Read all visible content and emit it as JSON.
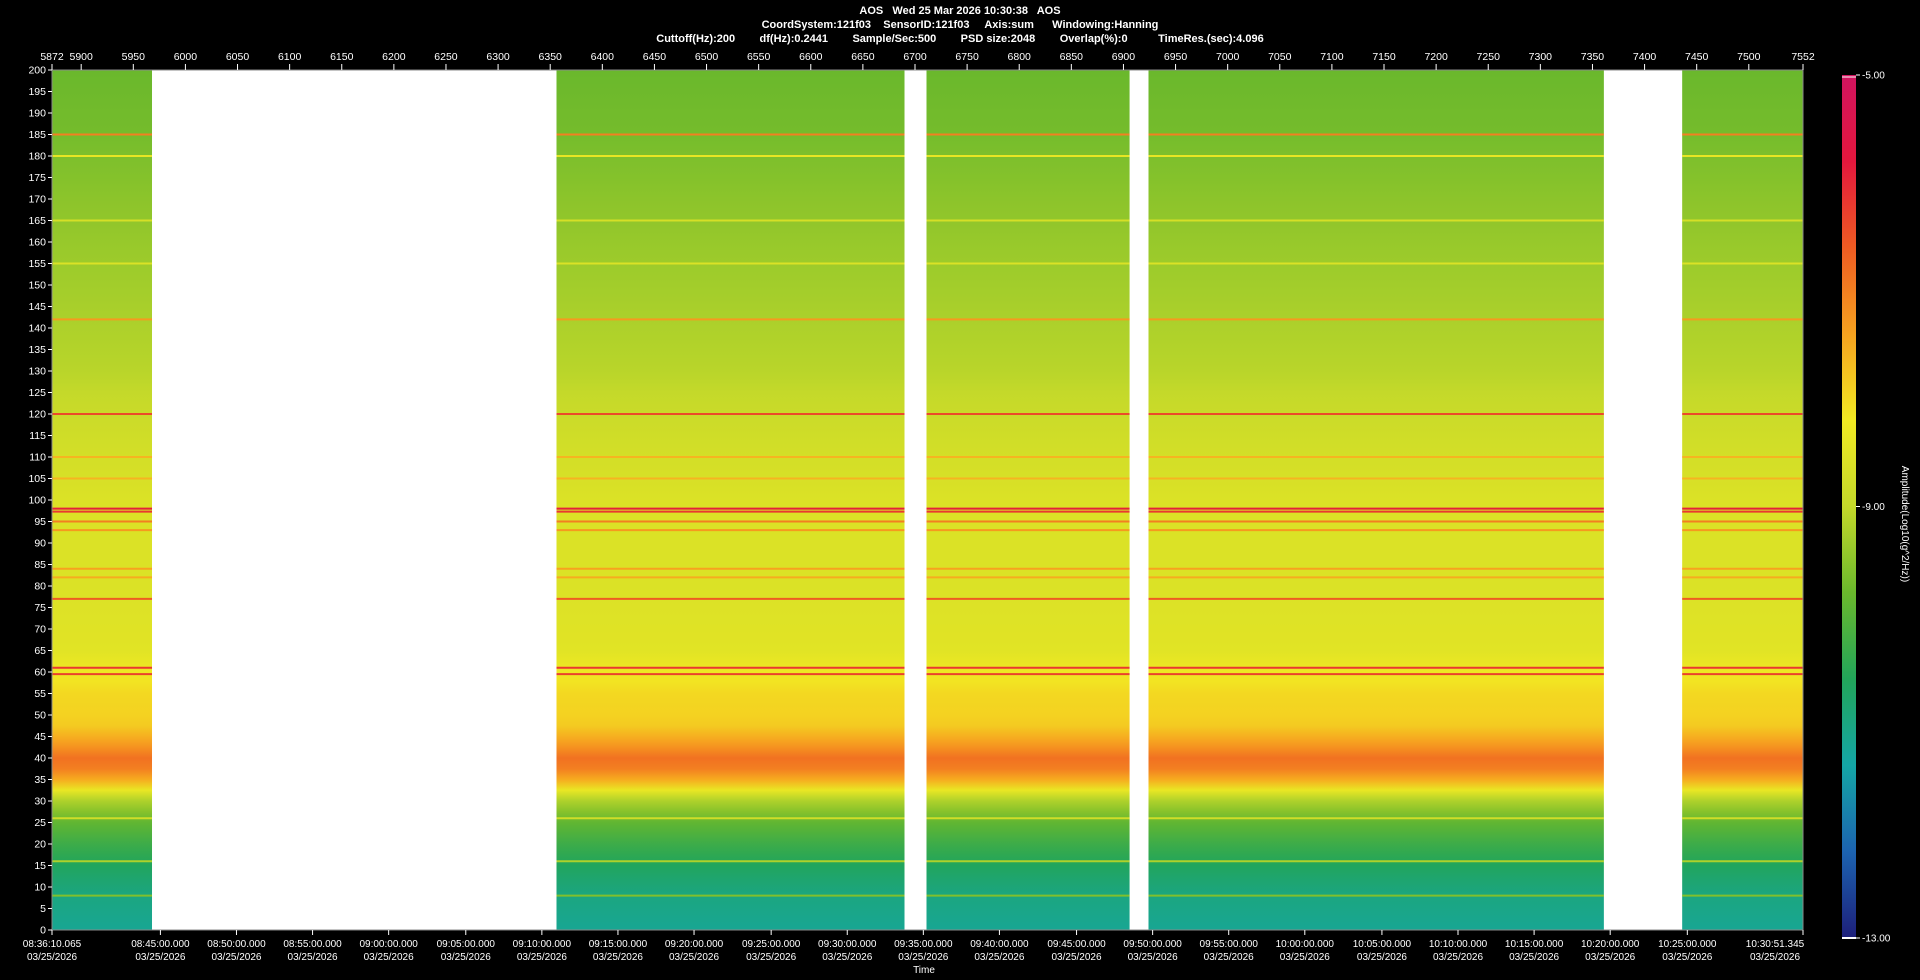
{
  "header": {
    "line1": "AOS   Wed 25 Mar 2026 10:30:38   AOS",
    "line2": "CoordSystem:121f03    SensorID:121f03     Axis:sum      Windowing:Hanning",
    "line3": "Cuttoff(Hz):200        df(Hz):0.2441        Sample/Sec:500        PSD size:2048        Overlap(%):0          TimeRes.(sec):4.096"
  },
  "chart_data": {
    "type": "heatmap",
    "title": "AOS   Wed 25 Mar 2026 10:30:38   AOS",
    "top_axis": {
      "range": [
        5872,
        7552
      ],
      "ticks": [
        5872,
        5900,
        5950,
        6000,
        6050,
        6100,
        6150,
        6200,
        6250,
        6300,
        6350,
        6400,
        6450,
        6500,
        6550,
        6600,
        6650,
        6700,
        6750,
        6800,
        6850,
        6900,
        6950,
        7000,
        7050,
        7100,
        7150,
        7200,
        7250,
        7300,
        7350,
        7400,
        7450,
        7500,
        7552
      ]
    },
    "y_axis": {
      "range": [
        0,
        200
      ],
      "ticks": [
        0,
        5,
        10,
        15,
        20,
        25,
        30,
        35,
        40,
        45,
        50,
        55,
        60,
        65,
        70,
        75,
        80,
        85,
        90,
        95,
        100,
        105,
        110,
        115,
        120,
        125,
        130,
        135,
        140,
        145,
        150,
        155,
        160,
        165,
        170,
        175,
        180,
        185,
        190,
        195,
        200
      ]
    },
    "x_axis": {
      "label": "Time",
      "date": "03/25/2026",
      "ticks": [
        {
          "index": 5872,
          "time": "08:36:10.065"
        },
        {
          "index": 5976,
          "time": "08:45:00.000"
        },
        {
          "index": 6049,
          "time": "08:50:00.000"
        },
        {
          "index": 6122,
          "time": "08:55:00.000"
        },
        {
          "index": 6195,
          "time": "09:00:00.000"
        },
        {
          "index": 6269,
          "time": "09:05:00.000"
        },
        {
          "index": 6342,
          "time": "09:10:00.000"
        },
        {
          "index": 6415,
          "time": "09:15:00.000"
        },
        {
          "index": 6488,
          "time": "09:20:00.000"
        },
        {
          "index": 6562,
          "time": "09:25:00.000"
        },
        {
          "index": 6635,
          "time": "09:30:00.000"
        },
        {
          "index": 6708,
          "time": "09:35:00.000"
        },
        {
          "index": 6781,
          "time": "09:40:00.000"
        },
        {
          "index": 6855,
          "time": "09:45:00.000"
        },
        {
          "index": 6928,
          "time": "09:50:00.000"
        },
        {
          "index": 7001,
          "time": "09:55:00.000"
        },
        {
          "index": 7074,
          "time": "10:00:00.000"
        },
        {
          "index": 7148,
          "time": "10:05:00.000"
        },
        {
          "index": 7221,
          "time": "10:10:00.000"
        },
        {
          "index": 7294,
          "time": "10:15:00.000"
        },
        {
          "index": 7367,
          "time": "10:20:00.000"
        },
        {
          "index": 7441,
          "time": "10:25:00.000"
        },
        {
          "index": 7552,
          "time": "10:30:51.345"
        }
      ]
    },
    "data_segments": [
      [
        5872,
        5968
      ],
      [
        6356,
        6690
      ],
      [
        6711,
        6906
      ],
      [
        6924,
        7361
      ],
      [
        7436,
        7552
      ]
    ],
    "gaps": [
      [
        5968,
        6356
      ],
      [
        6690,
        6711
      ],
      [
        6906,
        6924
      ],
      [
        7361,
        7436
      ]
    ],
    "background_profile": [
      {
        "hz": 0,
        "level": -11.2
      },
      {
        "hz": 8,
        "level": -11.0
      },
      {
        "hz": 14,
        "level": -10.7
      },
      {
        "hz": 20,
        "level": -10.3
      },
      {
        "hz": 25,
        "level": -9.9
      },
      {
        "hz": 30,
        "level": -9.2
      },
      {
        "hz": 35,
        "level": -7.5
      },
      {
        "hz": 39,
        "level": -6.7
      },
      {
        "hz": 43,
        "level": -7.3
      },
      {
        "hz": 48,
        "level": -7.9
      },
      {
        "hz": 55,
        "level": -8.0
      },
      {
        "hz": 65,
        "level": -8.5
      },
      {
        "hz": 80,
        "level": -8.6
      },
      {
        "hz": 100,
        "level": -8.6
      },
      {
        "hz": 115,
        "level": -8.8
      },
      {
        "hz": 130,
        "level": -9.1
      },
      {
        "hz": 150,
        "level": -9.3
      },
      {
        "hz": 170,
        "level": -9.5
      },
      {
        "hz": 185,
        "level": -9.7
      },
      {
        "hz": 200,
        "level": -9.8
      }
    ],
    "tonal_lines": [
      {
        "hz": 98,
        "level": -5.9
      },
      {
        "hz": 97.3,
        "level": -6.2
      },
      {
        "hz": 120,
        "level": -6.4
      },
      {
        "hz": 61,
        "level": -6.2
      },
      {
        "hz": 59.5,
        "level": -6.3
      },
      {
        "hz": 77,
        "level": -6.6
      },
      {
        "hz": 95,
        "level": -7.0
      },
      {
        "hz": 93,
        "level": -7.3
      },
      {
        "hz": 84,
        "level": -7.4
      },
      {
        "hz": 82,
        "level": -7.5
      },
      {
        "hz": 185,
        "level": -7.0
      },
      {
        "hz": 142,
        "level": -7.3
      },
      {
        "hz": 110,
        "level": -7.6
      },
      {
        "hz": 105,
        "level": -7.6
      },
      {
        "hz": 180,
        "level": -8.4
      },
      {
        "hz": 26,
        "level": -8.8
      },
      {
        "hz": 16,
        "level": -9.2
      },
      {
        "hz": 8,
        "level": -9.6
      },
      {
        "hz": 165,
        "level": -8.7
      },
      {
        "hz": 155,
        "level": -8.6
      }
    ],
    "colorbar": {
      "label": "Amplitude(Log10(g^2/Hz))",
      "min": -13.0,
      "max": -5.0,
      "ticks": [
        "-5.00",
        "-9.00",
        "-13.00"
      ],
      "colors": [
        "#1d1f7a",
        "#1c63b0",
        "#14a6a6",
        "#22a55a",
        "#6ab82c",
        "#c4d92a",
        "#f2ea22",
        "#f7a21f",
        "#ee5b22",
        "#e3173d",
        "#d1145f"
      ]
    }
  }
}
